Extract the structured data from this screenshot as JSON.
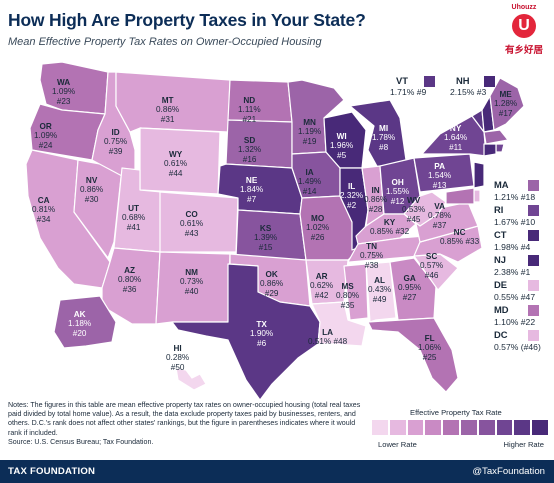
{
  "header": {
    "title": "How High Are Property Taxes in Your State?",
    "subtitle": "Mean Effective Property Tax Rates on Owner-Occupied Housing"
  },
  "logo": {
    "top_text": "Uhouzz",
    "mark": "U",
    "bottom_text": "有乡好居"
  },
  "scale_colors": [
    "#f3d7ee",
    "#e6b9e0",
    "#d9a0d2",
    "#c98ac4",
    "#b373b3",
    "#9c64a8",
    "#87549e",
    "#704593",
    "#5b3786",
    "#482978"
  ],
  "states": {
    "WA": {
      "rate": "1.09%",
      "rank": "#23",
      "color": "#b373b3"
    },
    "OR": {
      "rate": "1.09%",
      "rank": "#24",
      "color": "#b373b3"
    },
    "CA": {
      "rate": "0.81%",
      "rank": "#34",
      "color": "#d9a0d2"
    },
    "NV": {
      "rate": "0.86%",
      "rank": "#30",
      "color": "#d9a0d2"
    },
    "ID": {
      "rate": "0.75%",
      "rank": "#39",
      "color": "#d9a0d2"
    },
    "MT": {
      "rate": "0.86%",
      "rank": "#31",
      "color": "#d9a0d2"
    },
    "WY": {
      "rate": "0.61%",
      "rank": "#44",
      "color": "#e6b9e0"
    },
    "UT": {
      "rate": "0.68%",
      "rank": "#41",
      "color": "#e6b9e0"
    },
    "CO": {
      "rate": "0.61%",
      "rank": "#43",
      "color": "#e6b9e0"
    },
    "AZ": {
      "rate": "0.80%",
      "rank": "#36",
      "color": "#d9a0d2"
    },
    "NM": {
      "rate": "0.73%",
      "rank": "#40",
      "color": "#d9a0d2"
    },
    "ND": {
      "rate": "1.11%",
      "rank": "#21",
      "color": "#b373b3"
    },
    "SD": {
      "rate": "1.32%",
      "rank": "#16",
      "color": "#9c64a8"
    },
    "NE": {
      "rate": "1.84%",
      "rank": "#7",
      "color": "#5b3786"
    },
    "KS": {
      "rate": "1.39%",
      "rank": "#15",
      "color": "#87549e"
    },
    "OK": {
      "rate": "0.86%",
      "rank": "#29",
      "color": "#d9a0d2"
    },
    "TX": {
      "rate": "1.90%",
      "rank": "#6",
      "color": "#5b3786"
    },
    "MN": {
      "rate": "1.19%",
      "rank": "#19",
      "color": "#9c64a8"
    },
    "IA": {
      "rate": "1.49%",
      "rank": "#14",
      "color": "#87549e"
    },
    "MO": {
      "rate": "1.02%",
      "rank": "#26",
      "color": "#b373b3"
    },
    "AR": {
      "rate": "0.62%",
      "rank": "#42",
      "color": "#e6b9e0"
    },
    "LA": {
      "rate": "0.51%",
      "rank": "#48",
      "color": "#f3d7ee"
    },
    "WI": {
      "rate": "1.96%",
      "rank": "#5",
      "color": "#482978"
    },
    "IL": {
      "rate": "2.32%",
      "rank": "#2",
      "color": "#482978"
    },
    "MI": {
      "rate": "1.78%",
      "rank": "#8",
      "color": "#5b3786"
    },
    "IN": {
      "rate": "0.86%",
      "rank": "#28",
      "color": "#d9a0d2"
    },
    "OH": {
      "rate": "1.55%",
      "rank": "#12",
      "color": "#704593"
    },
    "KY": {
      "rate": "0.85%",
      "rank": "#32",
      "color": "#d9a0d2"
    },
    "TN": {
      "rate": "0.75%",
      "rank": "#38",
      "color": "#d9a0d2"
    },
    "MS": {
      "rate": "0.80%",
      "rank": "#35",
      "color": "#d9a0d2"
    },
    "AL": {
      "rate": "0.43%",
      "rank": "#49",
      "color": "#f3d7ee"
    },
    "GA": {
      "rate": "0.95%",
      "rank": "#27",
      "color": "#c98ac4"
    },
    "FL": {
      "rate": "1.06%",
      "rank": "#25",
      "color": "#b373b3"
    },
    "SC": {
      "rate": "0.57%",
      "rank": "#46",
      "color": "#e6b9e0"
    },
    "NC": {
      "rate": "0.85%",
      "rank": "#33",
      "color": "#d9a0d2"
    },
    "VA": {
      "rate": "0.78%",
      "rank": "#37",
      "color": "#d9a0d2"
    },
    "WV": {
      "rate": "0.53%",
      "rank": "#45",
      "color": "#e6b9e0"
    },
    "PA": {
      "rate": "1.54%",
      "rank": "#13",
      "color": "#704593"
    },
    "NY": {
      "rate": "1.64%",
      "rank": "#11",
      "color": "#704593"
    },
    "ME": {
      "rate": "1.28%",
      "rank": "#17",
      "color": "#9c64a8"
    },
    "AK": {
      "rate": "1.18%",
      "rank": "#20",
      "color": "#9c64a8"
    },
    "HI": {
      "rate": "0.28%",
      "rank": "#50",
      "color": "#f3d7ee"
    }
  },
  "small_states": [
    {
      "abbr": "VT",
      "rate": "1.71%",
      "rank": "#9",
      "color": "#5b3786"
    },
    {
      "abbr": "NH",
      "rate": "2.15%",
      "rank": "#3",
      "color": "#482978"
    },
    {
      "abbr": "MA",
      "rate": "1.21%",
      "rank": "#18",
      "color": "#9c64a8"
    },
    {
      "abbr": "RI",
      "rate": "1.67%",
      "rank": "#10",
      "color": "#704593"
    },
    {
      "abbr": "CT",
      "rate": "1.98%",
      "rank": "#4",
      "color": "#482978"
    },
    {
      "abbr": "NJ",
      "rate": "2.38%",
      "rank": "#1",
      "color": "#482978"
    },
    {
      "abbr": "DE",
      "rate": "0.55%",
      "rank": "#47",
      "color": "#e6b9e0"
    },
    {
      "abbr": "MD",
      "rate": "1.10%",
      "rank": "#22",
      "color": "#b373b3"
    },
    {
      "abbr": "DC",
      "rate": "0.57%",
      "rank": "(#46)",
      "color": "#e6b9e0"
    }
  ],
  "notes": "Notes: The figures in this table are mean effective property tax rates on owner-occupied housing (total real taxes paid divided by total home value). As a result, the data exclude property taxes paid by businesses, renters, and others. D.C.'s rank does not affect other states' rankings, but the figure in parentheses indicates where it would rank if included.",
  "source": "Source: U.S. Census Bureau; Tax Foundation.",
  "legend": {
    "title": "Effective Property Tax Rate",
    "lower": "Lower Rate",
    "higher": "Higher Rate"
  },
  "footer": {
    "left": "TAX FOUNDATION",
    "right": "@TaxFoundation"
  }
}
